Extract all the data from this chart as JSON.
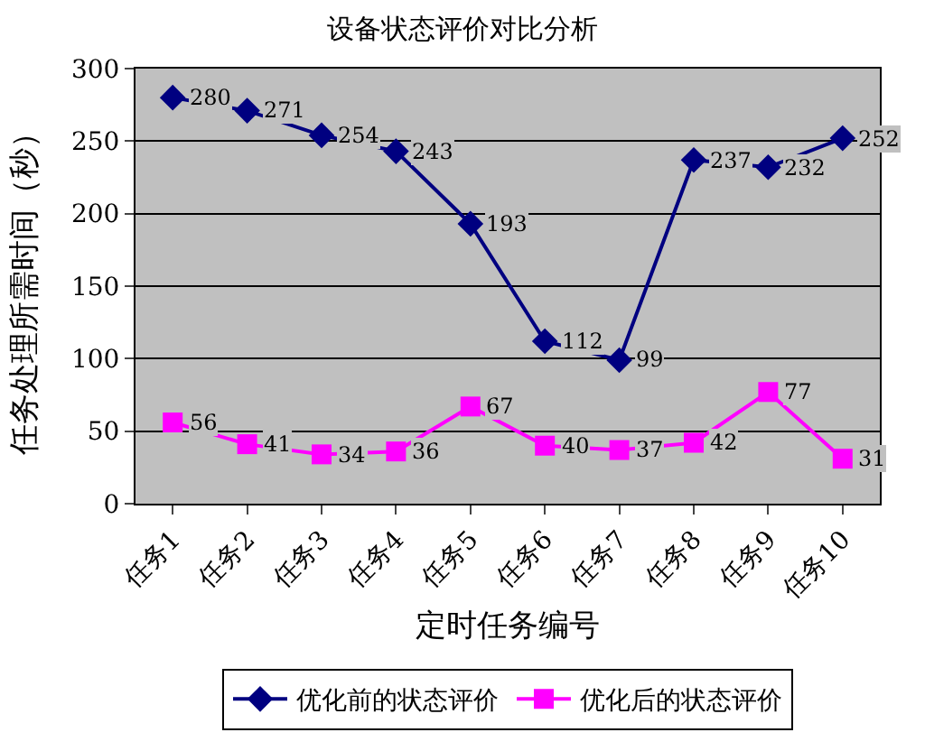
{
  "chart_data": {
    "type": "line",
    "title": "设备状态评价对比分析",
    "xlabel": "定时任务编号",
    "ylabel": "任务处理所需时间（秒）",
    "categories": [
      "任务1",
      "任务2",
      "任务3",
      "任务4",
      "任务5",
      "任务6",
      "任务7",
      "任务8",
      "任务9",
      "任务10"
    ],
    "series": [
      {
        "name": "优化前的状态评价",
        "color": "#000080",
        "marker": "diamond",
        "values": [
          280,
          271,
          254,
          243,
          193,
          112,
          99,
          237,
          232,
          252
        ]
      },
      {
        "name": "优化后的状态评价",
        "color": "#ff00ff",
        "marker": "square",
        "values": [
          56,
          41,
          34,
          36,
          67,
          40,
          37,
          42,
          77,
          31
        ]
      }
    ],
    "ylim": [
      0,
      300
    ],
    "yticks": [
      0,
      50,
      100,
      150,
      200,
      250,
      300
    ],
    "grid": "y",
    "legend": "bottom",
    "data_labels": true,
    "line_style": "solid"
  }
}
